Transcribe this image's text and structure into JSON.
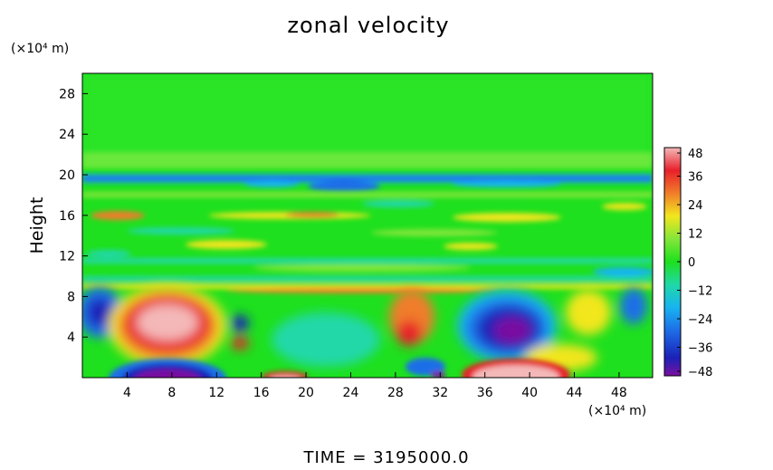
{
  "chart_data": {
    "type": "heatmap",
    "title": "zonal velocity",
    "ylabel": "Height",
    "xlabel": "",
    "x_unit": "(×10⁴ m)",
    "y_unit": "(×10⁴ m)",
    "footer": "TIME = 3195000.0",
    "x_ticks": [
      4,
      8,
      12,
      16,
      20,
      24,
      28,
      32,
      36,
      40,
      44,
      48
    ],
    "y_ticks": [
      4,
      8,
      12,
      16,
      20,
      24,
      28
    ],
    "xlim": [
      0,
      51
    ],
    "ylim": [
      0,
      30
    ],
    "colorbar": {
      "ticks": [
        48,
        36,
        24,
        12,
        0,
        -12,
        -24,
        -36,
        -48
      ],
      "range": [
        -48,
        48
      ],
      "colors": {
        "v48": "#f4b8b8",
        "v40": "#e8202a",
        "v30": "#f07d2a",
        "v20": "#f2e61e",
        "v10": "#84e63a",
        "v0": "#1ee01e",
        "vm10": "#20d8a8",
        "vm20": "#18b4f0",
        "vm30": "#1e6ee8",
        "vm40": "#1a22b8",
        "vm48": "#7a10a0"
      }
    },
    "features": [
      {
        "name": "upper-uniform",
        "y_range": [
          21,
          30
        ],
        "value": 2
      },
      {
        "name": "jet-negative-band",
        "y_range": [
          19.2,
          20.2
        ],
        "value": -30
      },
      {
        "name": "positive-core-west",
        "x": 7.5,
        "y": 5,
        "value": 46
      },
      {
        "name": "negative-core-east",
        "x": 38.5,
        "y": 5,
        "value": -46
      },
      {
        "name": "negative-surface-west",
        "x": 7.5,
        "y": 0.5,
        "value": -48
      },
      {
        "name": "positive-surface-east",
        "x": 38,
        "y": 0.8,
        "value": 44
      }
    ]
  }
}
